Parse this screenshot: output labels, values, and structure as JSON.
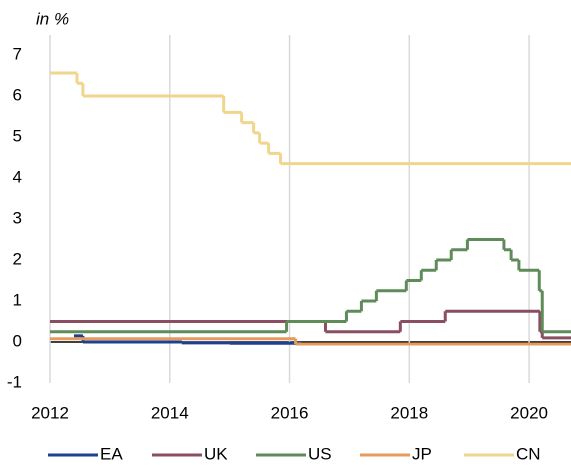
{
  "chart_data": {
    "type": "step",
    "y_axis_label": "in %",
    "xlim": [
      2012,
      2020.7
    ],
    "xticks": [
      2012,
      2014,
      2016,
      2018,
      2020
    ],
    "ylim": [
      -1,
      7
    ],
    "yticks": [
      -1,
      0,
      1,
      2,
      3,
      4,
      5,
      6,
      7
    ],
    "grid": true,
    "legend": "bottom",
    "series": [
      {
        "name": "EA",
        "color": "#1f3f8f",
        "x": [
          2012.4,
          2012.55,
          2014.2,
          2015.0,
          2016.2
        ],
        "values": [
          0.15,
          0.0,
          -0.02,
          -0.03,
          -0.05
        ]
      },
      {
        "name": "UK",
        "color": "#8b4d62",
        "x": [
          2012,
          2016.6,
          2017.85,
          2018.6,
          2020.18,
          2020.22
        ],
        "values": [
          0.5,
          0.25,
          0.5,
          0.75,
          0.25,
          0.1
        ]
      },
      {
        "name": "US",
        "color": "#5f8a5a",
        "x": [
          2012,
          2015.95,
          2016.95,
          2017.2,
          2017.45,
          2017.95,
          2018.2,
          2018.45,
          2018.7,
          2018.97,
          2019.58,
          2019.7,
          2019.83,
          2020.17,
          2020.22
        ],
        "values": [
          0.25,
          0.5,
          0.75,
          1.0,
          1.25,
          1.5,
          1.75,
          2.0,
          2.25,
          2.5,
          2.25,
          2.0,
          1.75,
          1.25,
          0.25
        ]
      },
      {
        "name": "JP",
        "color": "#e69a5e",
        "x": [
          2012,
          2016.1
        ],
        "values": [
          0.08,
          -0.05
        ]
      },
      {
        "name": "CN",
        "color": "#f0d68c",
        "x": [
          2012,
          2012.45,
          2012.55,
          2014.9,
          2015.2,
          2015.4,
          2015.5,
          2015.65,
          2015.85
        ],
        "values": [
          6.56,
          6.31,
          6.0,
          5.6,
          5.35,
          5.1,
          4.85,
          4.6,
          4.35
        ]
      }
    ]
  }
}
